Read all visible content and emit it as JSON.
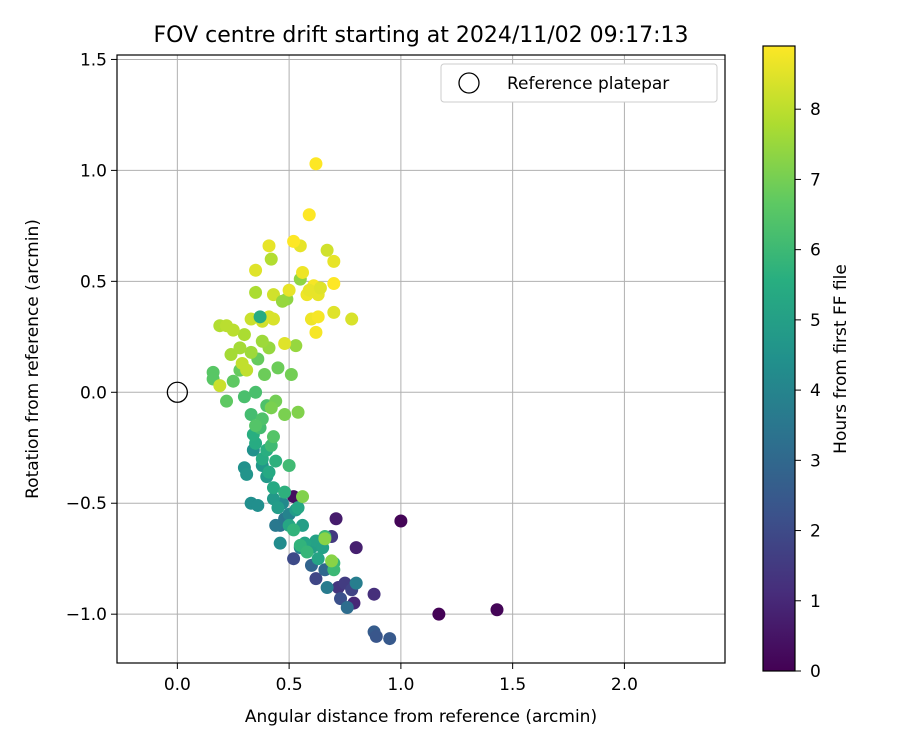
{
  "chart_data": {
    "type": "scatter",
    "title": "FOV centre drift starting at 2024/11/02 09:17:13",
    "xlabel": "Angular distance from reference (arcmin)",
    "ylabel": "Rotation from reference (arcmin)",
    "xlim": [
      -0.27,
      2.45
    ],
    "ylim": [
      -1.22,
      1.52
    ],
    "xticks": [
      0.0,
      0.5,
      1.0,
      1.5,
      2.0
    ],
    "xtick_labels": [
      "0.0",
      "0.5",
      "1.0",
      "1.5",
      "2.0"
    ],
    "yticks": [
      -1.0,
      -0.5,
      0.0,
      0.5,
      1.0,
      1.5
    ],
    "ytick_labels": [
      "−1.0",
      "−0.5",
      "0.0",
      "0.5",
      "1.0",
      "1.5"
    ],
    "grid": true,
    "legend": {
      "placement": "top-right",
      "entries": [
        "Reference platepar"
      ]
    },
    "reference_point": {
      "x": 0.0,
      "y": 0.0
    },
    "colorbar": {
      "label": "Hours from first FF file",
      "min": 0,
      "max": 8.9,
      "ticks": [
        0,
        1,
        2,
        3,
        4,
        5,
        6,
        7,
        8
      ],
      "tick_labels": [
        "0",
        "1",
        "2",
        "3",
        "4",
        "5",
        "6",
        "7",
        "8"
      ],
      "colormap": "viridis"
    },
    "points": [
      {
        "x": 1.0,
        "y": -0.58,
        "h": 0.1
      },
      {
        "x": 1.17,
        "y": -1.0,
        "h": 0.05
      },
      {
        "x": 1.43,
        "y": -0.98,
        "h": 0.1
      },
      {
        "x": 0.52,
        "y": -0.47,
        "h": 0.3
      },
      {
        "x": 0.71,
        "y": -0.57,
        "h": 0.7
      },
      {
        "x": 0.8,
        "y": -0.7,
        "h": 0.8
      },
      {
        "x": 0.79,
        "y": -0.95,
        "h": 1.0
      },
      {
        "x": 0.88,
        "y": -0.91,
        "h": 1.2
      },
      {
        "x": 0.69,
        "y": -0.65,
        "h": 1.5
      },
      {
        "x": 0.72,
        "y": -0.88,
        "h": 1.4
      },
      {
        "x": 0.75,
        "y": -0.86,
        "h": 1.6
      },
      {
        "x": 0.62,
        "y": -0.84,
        "h": 1.9
      },
      {
        "x": 0.52,
        "y": -0.75,
        "h": 2.0
      },
      {
        "x": 0.78,
        "y": -0.89,
        "h": 1.8
      },
      {
        "x": 0.73,
        "y": -0.93,
        "h": 2.2
      },
      {
        "x": 0.88,
        "y": -1.08,
        "h": 2.6
      },
      {
        "x": 0.89,
        "y": -1.1,
        "h": 2.4
      },
      {
        "x": 0.95,
        "y": -1.11,
        "h": 2.5
      },
      {
        "x": 0.76,
        "y": -0.97,
        "h": 3.2
      },
      {
        "x": 0.6,
        "y": -0.78,
        "h": 2.9
      },
      {
        "x": 0.66,
        "y": -0.8,
        "h": 3.0
      },
      {
        "x": 0.46,
        "y": -0.6,
        "h": 3.4
      },
      {
        "x": 0.44,
        "y": -0.6,
        "h": 3.6
      },
      {
        "x": 0.48,
        "y": -0.57,
        "h": 3.5
      },
      {
        "x": 0.67,
        "y": -0.88,
        "h": 3.7
      },
      {
        "x": 0.8,
        "y": -0.86,
        "h": 3.8
      },
      {
        "x": 0.55,
        "y": -0.7,
        "h": 3.9
      },
      {
        "x": 0.5,
        "y": -0.55,
        "h": 4.0
      },
      {
        "x": 0.47,
        "y": -0.5,
        "h": 4.2
      },
      {
        "x": 0.46,
        "y": -0.68,
        "h": 4.3
      },
      {
        "x": 0.33,
        "y": -0.5,
        "h": 4.4
      },
      {
        "x": 0.36,
        "y": -0.51,
        "h": 4.4
      },
      {
        "x": 0.3,
        "y": -0.34,
        "h": 4.5
      },
      {
        "x": 0.31,
        "y": -0.37,
        "h": 4.6
      },
      {
        "x": 0.34,
        "y": -0.26,
        "h": 4.5
      },
      {
        "x": 0.38,
        "y": -0.33,
        "h": 4.7
      },
      {
        "x": 0.4,
        "y": -0.38,
        "h": 4.8
      },
      {
        "x": 0.43,
        "y": -0.48,
        "h": 4.8
      },
      {
        "x": 0.45,
        "y": -0.52,
        "h": 4.9
      },
      {
        "x": 0.53,
        "y": -0.53,
        "h": 4.9
      },
      {
        "x": 0.56,
        "y": -0.6,
        "h": 5.0
      },
      {
        "x": 0.6,
        "y": -0.7,
        "h": 5.0
      },
      {
        "x": 0.62,
        "y": -0.67,
        "h": 5.1
      },
      {
        "x": 0.65,
        "y": -0.7,
        "h": 5.1
      },
      {
        "x": 0.63,
        "y": -0.75,
        "h": 5.2
      },
      {
        "x": 0.57,
        "y": -0.68,
        "h": 5.2
      },
      {
        "x": 0.54,
        "y": -0.52,
        "h": 5.3
      },
      {
        "x": 0.5,
        "y": -0.6,
        "h": 5.3
      },
      {
        "x": 0.43,
        "y": -0.43,
        "h": 5.4
      },
      {
        "x": 0.41,
        "y": -0.36,
        "h": 5.4
      },
      {
        "x": 0.38,
        "y": -0.3,
        "h": 5.5
      },
      {
        "x": 0.35,
        "y": -0.23,
        "h": 5.5
      },
      {
        "x": 0.34,
        "y": -0.19,
        "h": 5.6
      },
      {
        "x": 0.4,
        "y": -0.26,
        "h": 5.6
      },
      {
        "x": 0.44,
        "y": -0.31,
        "h": 5.7
      },
      {
        "x": 0.48,
        "y": -0.45,
        "h": 5.7
      },
      {
        "x": 0.52,
        "y": -0.62,
        "h": 5.8
      },
      {
        "x": 0.55,
        "y": -0.69,
        "h": 5.8
      },
      {
        "x": 0.58,
        "y": -0.72,
        "h": 5.9
      },
      {
        "x": 0.7,
        "y": -0.77,
        "h": 5.9
      },
      {
        "x": 0.7,
        "y": -0.8,
        "h": 6.0
      },
      {
        "x": 0.66,
        "y": -0.65,
        "h": 6.0
      },
      {
        "x": 0.5,
        "y": -0.33,
        "h": 6.1
      },
      {
        "x": 0.42,
        "y": -0.24,
        "h": 6.1
      },
      {
        "x": 0.37,
        "y": -0.16,
        "h": 6.2
      },
      {
        "x": 0.33,
        "y": -0.1,
        "h": 6.2
      },
      {
        "x": 0.3,
        "y": -0.02,
        "h": 6.3
      },
      {
        "x": 0.35,
        "y": 0.0,
        "h": 6.3
      },
      {
        "x": 0.4,
        "y": -0.06,
        "h": 6.4
      },
      {
        "x": 0.38,
        "y": -0.12,
        "h": 6.4
      },
      {
        "x": 0.35,
        "y": -0.15,
        "h": 6.5
      },
      {
        "x": 0.43,
        "y": -0.2,
        "h": 6.5
      },
      {
        "x": 0.16,
        "y": 0.09,
        "h": 6.6
      },
      {
        "x": 0.16,
        "y": 0.06,
        "h": 6.6
      },
      {
        "x": 0.22,
        "y": -0.04,
        "h": 6.7
      },
      {
        "x": 0.25,
        "y": 0.05,
        "h": 6.7
      },
      {
        "x": 0.28,
        "y": 0.1,
        "h": 6.8
      },
      {
        "x": 0.36,
        "y": 0.15,
        "h": 6.8
      },
      {
        "x": 0.39,
        "y": 0.08,
        "h": 6.9
      },
      {
        "x": 0.45,
        "y": 0.11,
        "h": 6.9
      },
      {
        "x": 0.51,
        "y": 0.08,
        "h": 7.0
      },
      {
        "x": 0.44,
        "y": -0.04,
        "h": 7.0
      },
      {
        "x": 0.42,
        "y": -0.07,
        "h": 7.1
      },
      {
        "x": 0.48,
        "y": -0.1,
        "h": 7.1
      },
      {
        "x": 0.54,
        "y": -0.09,
        "h": 7.2
      },
      {
        "x": 0.56,
        "y": -0.47,
        "h": 7.2
      },
      {
        "x": 0.66,
        "y": -0.66,
        "h": 7.3
      },
      {
        "x": 0.69,
        "y": -0.76,
        "h": 7.3
      },
      {
        "x": 0.49,
        "y": 0.42,
        "h": 7.4
      },
      {
        "x": 0.55,
        "y": 0.51,
        "h": 7.4
      },
      {
        "x": 0.53,
        "y": 0.21,
        "h": 7.5
      },
      {
        "x": 0.41,
        "y": 0.2,
        "h": 7.5
      },
      {
        "x": 0.38,
        "y": 0.23,
        "h": 7.6
      },
      {
        "x": 0.33,
        "y": 0.18,
        "h": 7.6
      },
      {
        "x": 0.28,
        "y": 0.2,
        "h": 7.7
      },
      {
        "x": 0.24,
        "y": 0.17,
        "h": 7.7
      },
      {
        "x": 0.3,
        "y": 0.26,
        "h": 7.8
      },
      {
        "x": 0.35,
        "y": 0.45,
        "h": 7.8
      },
      {
        "x": 0.42,
        "y": 0.6,
        "h": 7.9
      },
      {
        "x": 0.19,
        "y": 0.3,
        "h": 7.9
      },
      {
        "x": 0.22,
        "y": 0.3,
        "h": 8.0
      },
      {
        "x": 0.25,
        "y": 0.28,
        "h": 8.0
      },
      {
        "x": 0.29,
        "y": 0.13,
        "h": 8.1
      },
      {
        "x": 0.31,
        "y": 0.1,
        "h": 8.1
      },
      {
        "x": 0.19,
        "y": 0.03,
        "h": 8.2
      },
      {
        "x": 0.33,
        "y": 0.33,
        "h": 8.2
      },
      {
        "x": 0.38,
        "y": 0.32,
        "h": 8.3
      },
      {
        "x": 0.43,
        "y": 0.44,
        "h": 8.3
      },
      {
        "x": 0.41,
        "y": 0.34,
        "h": 8.4
      },
      {
        "x": 0.43,
        "y": 0.33,
        "h": 8.4
      },
      {
        "x": 0.48,
        "y": 0.22,
        "h": 8.5
      },
      {
        "x": 0.35,
        "y": 0.55,
        "h": 8.5
      },
      {
        "x": 0.41,
        "y": 0.66,
        "h": 8.6
      },
      {
        "x": 0.5,
        "y": 0.46,
        "h": 8.6
      },
      {
        "x": 0.56,
        "y": 0.54,
        "h": 8.7
      },
      {
        "x": 0.58,
        "y": 0.44,
        "h": 8.7
      },
      {
        "x": 0.61,
        "y": 0.48,
        "h": 8.8
      },
      {
        "x": 0.59,
        "y": 0.46,
        "h": 8.6
      },
      {
        "x": 0.63,
        "y": 0.44,
        "h": 8.6
      },
      {
        "x": 0.64,
        "y": 0.47,
        "h": 8.5
      },
      {
        "x": 0.6,
        "y": 0.33,
        "h": 8.7
      },
      {
        "x": 0.63,
        "y": 0.34,
        "h": 8.8
      },
      {
        "x": 0.62,
        "y": 0.27,
        "h": 8.8
      },
      {
        "x": 0.7,
        "y": 0.36,
        "h": 8.5
      },
      {
        "x": 0.78,
        "y": 0.33,
        "h": 8.4
      },
      {
        "x": 0.7,
        "y": 0.49,
        "h": 8.9
      },
      {
        "x": 0.7,
        "y": 0.59,
        "h": 8.6
      },
      {
        "x": 0.67,
        "y": 0.64,
        "h": 8.3
      },
      {
        "x": 0.55,
        "y": 0.66,
        "h": 8.6
      },
      {
        "x": 0.52,
        "y": 0.68,
        "h": 8.9
      },
      {
        "x": 0.59,
        "y": 0.8,
        "h": 8.9
      },
      {
        "x": 0.62,
        "y": 1.03,
        "h": 8.9
      },
      {
        "x": 0.37,
        "y": 0.34,
        "h": 5.5
      },
      {
        "x": 0.47,
        "y": 0.41,
        "h": 7.5
      }
    ]
  }
}
